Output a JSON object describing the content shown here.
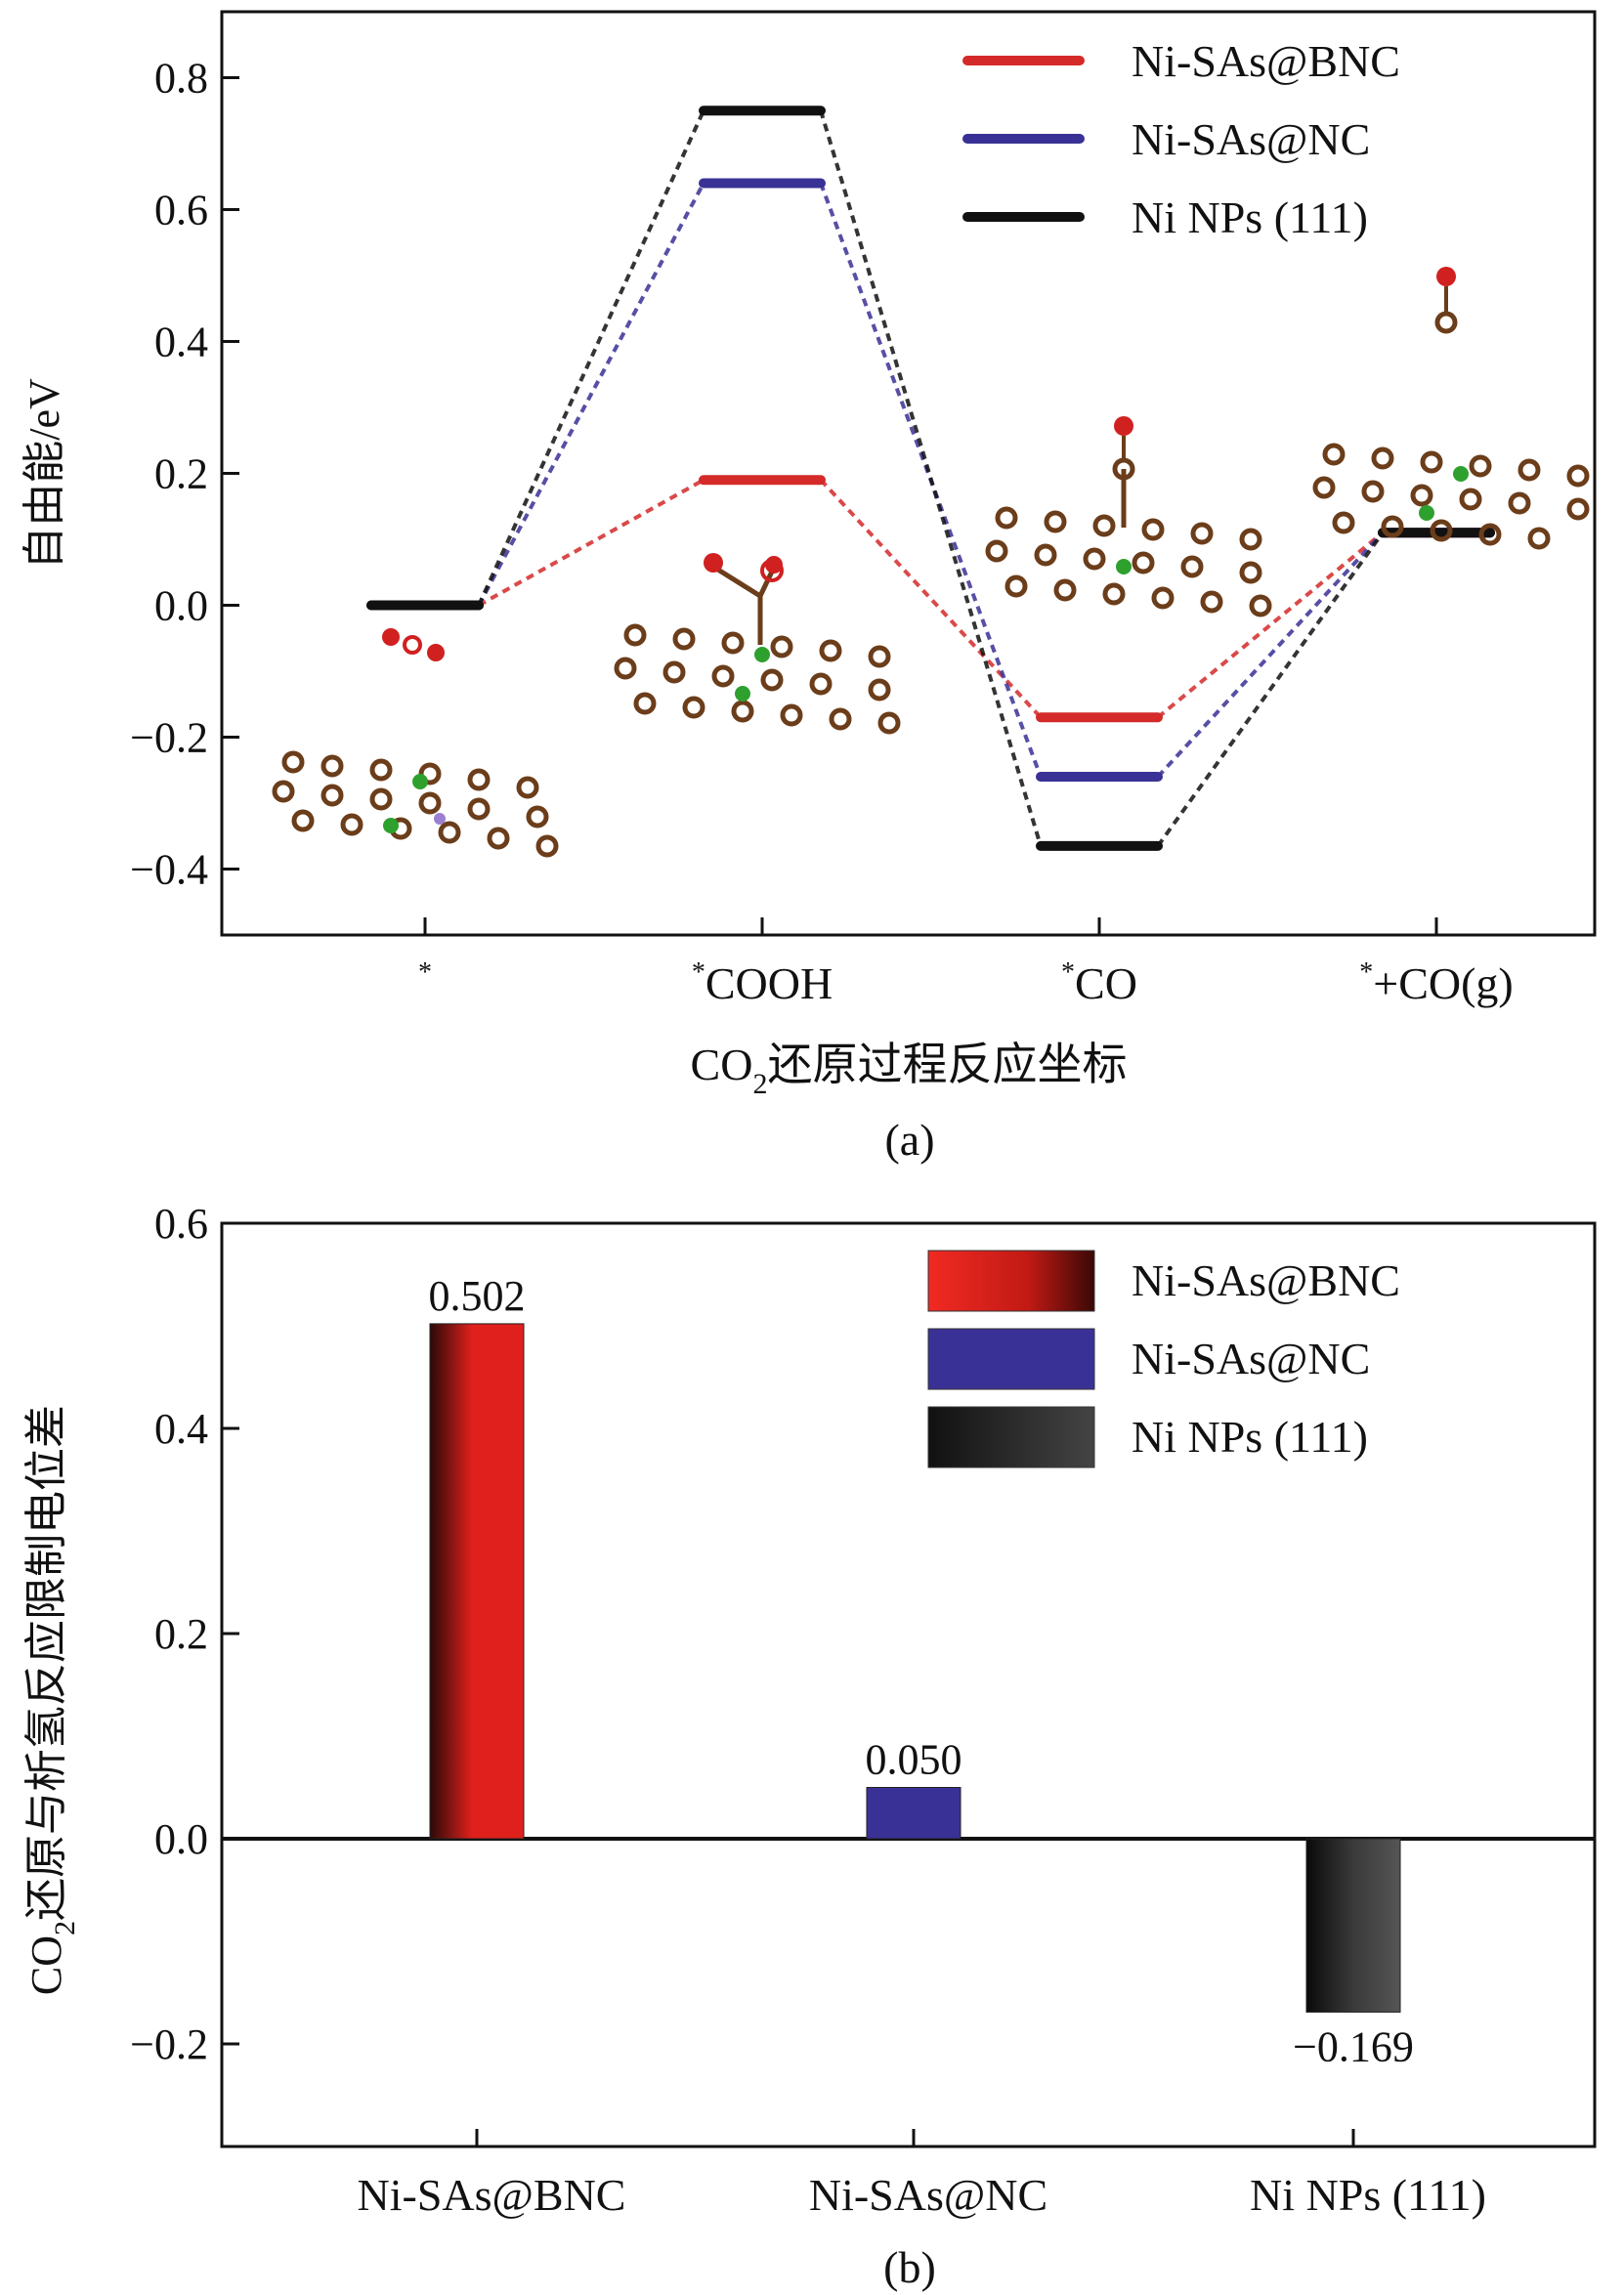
{
  "chart_data": [
    {
      "type": "line",
      "panel_label": "(a)",
      "xlabel_main": "CO",
      "xlabel_sub": "2",
      "xlabel_rest": "还原过程反应坐标",
      "ylabel": "自由能/eV",
      "ylim": [
        -0.5,
        0.9
      ],
      "yticks": [
        -0.4,
        -0.2,
        0.0,
        0.2,
        0.4,
        0.6,
        0.8
      ],
      "ytick_labels": [
        "−0.4",
        "−0.2",
        "0.0",
        "0.2",
        "0.4",
        "0.6",
        "0.8"
      ],
      "categories": [
        {
          "sup": "*",
          "label": ""
        },
        {
          "sup": "*",
          "label": "COOH"
        },
        {
          "sup": "*",
          "label": "CO"
        },
        {
          "sup": "*",
          "label": "+CO(g)"
        }
      ],
      "series": [
        {
          "name": "Ni-SAs@BNC",
          "color": "#d42a2a",
          "values": [
            0.0,
            0.19,
            -0.17,
            0.11
          ]
        },
        {
          "name": "Ni-SAs@NC",
          "color": "#3a3196",
          "values": [
            0.0,
            0.64,
            -0.26,
            0.11
          ]
        },
        {
          "name": "Ni NPs (111)",
          "color": "#111111",
          "values": [
            0.0,
            0.75,
            -0.365,
            0.11
          ]
        }
      ],
      "legend_position": "top-right"
    },
    {
      "type": "bar",
      "panel_label": "(b)",
      "ylabel_main": "CO",
      "ylabel_sub": "2",
      "ylabel_rest": "还原与析氢反应限制电位差",
      "ylim": [
        -0.3,
        0.6
      ],
      "yticks": [
        -0.2,
        0.0,
        0.2,
        0.4,
        0.6
      ],
      "ytick_labels": [
        "−0.2",
        "0.0",
        "0.2",
        "0.4",
        "0.6"
      ],
      "categories": [
        "Ni-SAs@BNC",
        "Ni-SAs@NC",
        "Ni NPs (111)"
      ],
      "values": [
        0.502,
        0.05,
        -0.169
      ],
      "value_labels": [
        "0.502",
        "0.050",
        "−0.169"
      ],
      "colors": [
        "#e0201c",
        "#3a3196",
        "#2a2a2a"
      ],
      "legend": [
        "Ni-SAs@BNC",
        "Ni-SAs@NC",
        "Ni NPs (111)"
      ],
      "legend_position": "top-right"
    }
  ]
}
